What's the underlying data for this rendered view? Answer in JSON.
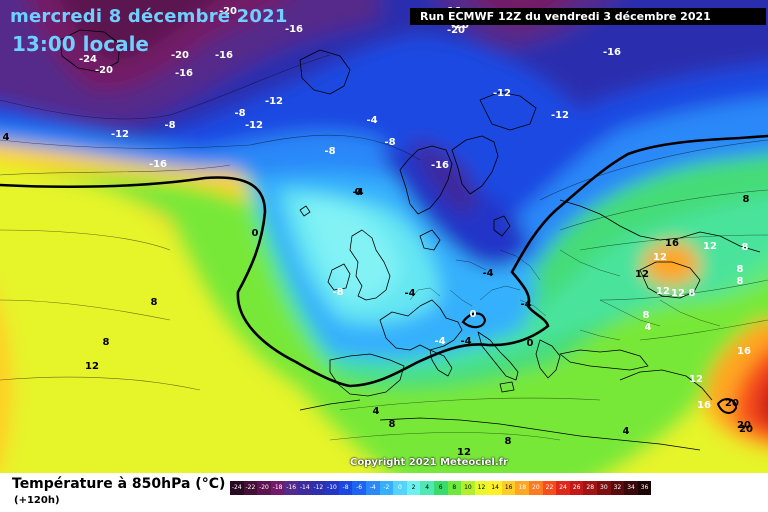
{
  "header": {
    "date": "mercredi 8 décembre 2021",
    "time": "13:00 locale",
    "run": "Run ECMWF 12Z du vendredi 3 décembre 2021"
  },
  "copyright": "Copyright 2021 Meteociel.fr",
  "footer": {
    "parameter": "Température à 850hPa (°C)",
    "lead": "(+120h)"
  },
  "legend": [
    {
      "label": "-24",
      "color": "#2a0a22"
    },
    {
      "label": "-22",
      "color": "#420f36"
    },
    {
      "label": "-20",
      "color": "#5c1450"
    },
    {
      "label": "-18",
      "color": "#731a68"
    },
    {
      "label": "-16",
      "color": "#552a8a"
    },
    {
      "label": "-14",
      "color": "#3e2c9e"
    },
    {
      "label": "-12",
      "color": "#2c2fae"
    },
    {
      "label": "-10",
      "color": "#2436c8"
    },
    {
      "label": "-8",
      "color": "#1b48e2"
    },
    {
      "label": "-6",
      "color": "#1e63f2"
    },
    {
      "label": "-4",
      "color": "#2a88f8"
    },
    {
      "label": "-2",
      "color": "#36b0fc"
    },
    {
      "label": "0",
      "color": "#52d4fc"
    },
    {
      "label": "2",
      "color": "#6df0f0"
    },
    {
      "label": "4",
      "color": "#4fe8b4"
    },
    {
      "label": "6",
      "color": "#38dc6c"
    },
    {
      "label": "8",
      "color": "#6ee83c"
    },
    {
      "label": "10",
      "color": "#b0f02c"
    },
    {
      "label": "12",
      "color": "#e8f82a"
    },
    {
      "label": "14",
      "color": "#fff028"
    },
    {
      "label": "16",
      "color": "#ffce26"
    },
    {
      "label": "18",
      "color": "#ffa624"
    },
    {
      "label": "20",
      "color": "#ff7a20"
    },
    {
      "label": "22",
      "color": "#f84c1c"
    },
    {
      "label": "24",
      "color": "#e0281a"
    },
    {
      "label": "26",
      "color": "#c41818"
    },
    {
      "label": "28",
      "color": "#a01414"
    },
    {
      "label": "30",
      "color": "#7c1010"
    },
    {
      "label": "32",
      "color": "#5a0c0c"
    },
    {
      "label": "34",
      "color": "#3a0808"
    },
    {
      "label": "36",
      "color": "#1c0404"
    }
  ],
  "isotherm_labels": [
    {
      "text": "-20",
      "tone": "light"
    },
    {
      "text": "-16",
      "tone": "light"
    },
    {
      "text": "-24",
      "tone": "light"
    },
    {
      "text": "-20",
      "tone": "light"
    },
    {
      "text": "-20",
      "tone": "light"
    },
    {
      "text": "-16",
      "tone": "light"
    },
    {
      "text": "-16",
      "tone": "light"
    },
    {
      "text": "-16",
      "tone": "light"
    },
    {
      "text": "-20",
      "tone": "light"
    },
    {
      "text": "-8",
      "tone": "light"
    },
    {
      "text": "-16",
      "tone": "light"
    },
    {
      "text": "-12",
      "tone": "light"
    },
    {
      "text": "-8",
      "tone": "light"
    },
    {
      "text": "-12",
      "tone": "light"
    },
    {
      "text": "-12",
      "tone": "light"
    },
    {
      "text": "-8",
      "tone": "light"
    },
    {
      "text": "-8",
      "tone": "light"
    },
    {
      "text": "-16",
      "tone": "light"
    },
    {
      "text": "-20",
      "tone": "light"
    },
    {
      "text": "-16",
      "tone": "light"
    },
    {
      "text": "-16",
      "tone": "light"
    },
    {
      "text": "-12",
      "tone": "light"
    },
    {
      "text": "-12",
      "tone": "light"
    },
    {
      "text": "-4",
      "tone": "light"
    },
    {
      "text": "0",
      "tone": "dark"
    },
    {
      "text": "-4",
      "tone": "dark"
    },
    {
      "text": "0",
      "tone": "dark"
    },
    {
      "text": "-8",
      "tone": "light"
    },
    {
      "text": "-4",
      "tone": "dark"
    },
    {
      "text": "0",
      "tone": "light"
    },
    {
      "text": "-4",
      "tone": "light"
    },
    {
      "text": "-4",
      "tone": "dark"
    },
    {
      "text": "-4",
      "tone": "dark"
    },
    {
      "text": "-4",
      "tone": "dark"
    },
    {
      "text": "0",
      "tone": "dark"
    },
    {
      "text": "8",
      "tone": "dark"
    },
    {
      "text": "8",
      "tone": "dark"
    },
    {
      "text": "12",
      "tone": "dark"
    },
    {
      "text": "4",
      "tone": "dark"
    },
    {
      "text": "8",
      "tone": "dark"
    },
    {
      "text": "12",
      "tone": "dark"
    },
    {
      "text": "8",
      "tone": "dark"
    },
    {
      "text": "8",
      "tone": "dark"
    },
    {
      "text": "16",
      "tone": "dark"
    },
    {
      "text": "12",
      "tone": "light"
    },
    {
      "text": "12",
      "tone": "light"
    },
    {
      "text": "8",
      "tone": "light"
    },
    {
      "text": "12",
      "tone": "dark"
    },
    {
      "text": "8",
      "tone": "light"
    },
    {
      "text": "12",
      "tone": "light"
    },
    {
      "text": "8",
      "tone": "light"
    },
    {
      "text": "12",
      "tone": "light"
    },
    {
      "text": "8",
      "tone": "light"
    },
    {
      "text": "4",
      "tone": "light"
    },
    {
      "text": "4",
      "tone": "dark"
    },
    {
      "text": "8",
      "tone": "light"
    },
    {
      "text": "16",
      "tone": "light"
    },
    {
      "text": "12",
      "tone": "light"
    },
    {
      "text": "16",
      "tone": "light"
    },
    {
      "text": "20",
      "tone": "dark"
    },
    {
      "text": "20",
      "tone": "dark"
    },
    {
      "text": "20",
      "tone": "dark"
    },
    {
      "text": "4",
      "tone": "dark"
    }
  ]
}
